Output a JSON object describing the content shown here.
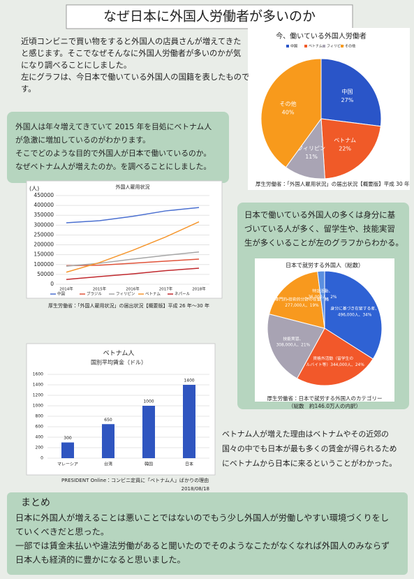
{
  "header": {
    "title": "なぜ日本に外国人労働者が多いのか"
  },
  "intro": {
    "lines": [
      "近頃コンビニで買い物をすると外国人の店員さんが増えてきた",
      "と感じます。そこでなぜそんなに外国人労働者が多いのかが気",
      "になり調べることにしました。",
      "左にグラフは、今日本で働いている外国人の国籍を表したもので",
      "す。"
    ]
  },
  "section2": {
    "lines": [
      "外国人は年々増えてきていて 2015 年を目処にベトナム人",
      "が急激に増加しているのがわかります。",
      "そこでどのような目的で外国人が日本で働いているのか。",
      "なぜベトナム人が増えたのか。を調べることにしました。"
    ]
  },
  "section3": {
    "lines": [
      "日本で働いている外国人の多くは身分に基",
      "づいている人が多く、留学生や、技能実習",
      "生が多くいることが左のグラフからわかる。"
    ]
  },
  "section4": {
    "lines": [
      "ベトナム人が増えた理由はベトナムやその近郊の",
      "国々の中でも日本が最も多くの賃金が得られるため",
      "にベトナムから日本に来るということがわかった。"
    ]
  },
  "summary": {
    "heading": "まとめ",
    "lines": [
      "日本に外国人が増えることは悪いことではないのでもう少し外国人が労働しやすい環境づくりをし",
      "ていくべきだと思った。",
      "一部では賃金未払いや違法労働があると聞いたのでそのようなこたがなくなれば外国人のみならず",
      "日本人も経済的に豊かになると思いました。"
    ]
  },
  "chart_data": [
    {
      "type": "pie",
      "title": "今、働いている外国人労働者",
      "categories": [
        "中国",
        "ベトナム",
        "フィリピン",
        "その他"
      ],
      "values": [
        27,
        22,
        11,
        40
      ],
      "value_labels": [
        "27%",
        "22%",
        "11%",
        "40%"
      ],
      "colors": [
        "#2a55c8",
        "#f05a28",
        "#a9a4b4",
        "#f89a1c"
      ],
      "legend": "top",
      "source": [
        "厚生労働省：「外国人雇用状況」の届出状況【概要版】平成 30 年"
      ]
    },
    {
      "type": "line",
      "title": "外国人雇用状況",
      "ylabel": "(人)",
      "x": [
        "2014年",
        "2015年",
        "2016年",
        "2017年",
        "2018年"
      ],
      "series": [
        {
          "name": "中国",
          "color": "#4a6fd0",
          "values": [
            311831,
            322545,
            344658,
            372263,
            389117
          ]
        },
        {
          "name": "ブラジル",
          "color": "#e0533a",
          "values": [
            94171,
            96672,
            106597,
            117299,
            127392
          ]
        },
        {
          "name": "フィリピン",
          "color": "#a6a6a6",
          "values": [
            91519,
            106533,
            127518,
            146798,
            164006
          ]
        },
        {
          "name": "ベトナム",
          "color": "#f5962d",
          "values": [
            61168,
            110013,
            172018,
            240259,
            316840
          ]
        },
        {
          "name": "ネパール",
          "color": "#c0282d",
          "values": [
            24282,
            39056,
            52770,
            69111,
            81562
          ]
        }
      ],
      "ylim": [
        0,
        450000
      ],
      "yticks": [
        0,
        50000,
        100000,
        150000,
        200000,
        250000,
        300000,
        350000,
        400000,
        450000
      ],
      "grid": true,
      "legend": "bottom",
      "source": [
        "厚生労働省：「外国人雇用状況」の届出状況【概要版】平成 26 年〜30 年"
      ]
    },
    {
      "type": "pie",
      "title": "日本で就労する外国人（総数）",
      "categories": [
        "身分に基づき在留する者、",
        "資格外活動（留学生の",
        "技能実習、",
        "専門的・技術的分野の在留資格",
        "特定活動、"
      ],
      "values": [
        34,
        24,
        21,
        19,
        2
      ],
      "value_labels": [
        "496,000人、34%",
        "アルバイト等）344,000人、24%",
        "308,000人、21%",
        "277,000人、19%",
        "36,000人、2%"
      ],
      "colors": [
        "#2f62d4",
        "#f2582a",
        "#a8a3b3",
        "#f8991e",
        "#5b8fe0"
      ],
      "source": [
        "厚生労働省：日本で就労する外国人のカテゴリー",
        "（総数　約146.0万人の内訳）"
      ]
    },
    {
      "type": "bar",
      "title": "ベトナム人",
      "subtitle": "国別平均賃金（ドル）",
      "categories": [
        "マレーシア",
        "台湾",
        "韓国",
        "日本"
      ],
      "values": [
        300,
        650,
        1000,
        1400
      ],
      "color": "#2f55c0",
      "ylim": [
        0,
        1600
      ],
      "yticks": [
        0,
        200,
        400,
        600,
        800,
        1000,
        1200,
        1400,
        1600
      ],
      "grid": true,
      "source": [
        "PRESIDENT Online：コンビニ定員に「ベトナム人」ばかりの理由",
        "2018/08/18"
      ]
    }
  ]
}
